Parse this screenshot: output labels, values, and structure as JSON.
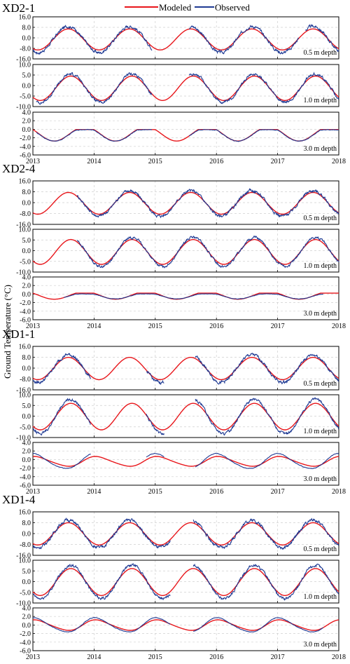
{
  "legend": {
    "modeled": "Modeled",
    "observed": "Observed",
    "modeled_color": "#e8161b",
    "observed_color": "#1f3a93"
  },
  "ylabel": "Ground Temperature (°C)",
  "x_tick_labels": [
    "2013",
    "2014",
    "2015",
    "2016",
    "2017",
    "2018"
  ],
  "chart_data": [
    {
      "station": "XD2-1",
      "panels": [
        {
          "type": "line",
          "depth": "0.5 m depth",
          "ylim": [
            -16,
            16
          ],
          "yticks": [
            "16.0",
            "8.0",
            "0.0",
            "-8.0",
            "-16.0"
          ],
          "xlim": [
            2013,
            2018
          ],
          "grid": true,
          "model": {
            "mean": -1.2,
            "amp": 8.0,
            "phase": 0.58,
            "shape": 1
          },
          "observed_gaps": [
            [
              2014.95,
              2015.55
            ],
            [
              2017.35,
              2017.45
            ]
          ],
          "obs_bias": 0.8,
          "obs_amp_scale": 1.15,
          "obs_noise": 1.6
        },
        {
          "type": "line",
          "depth": "1.0 m depth",
          "ylim": [
            -10,
            10
          ],
          "yticks": [
            "10.0",
            "5.0",
            "0.0",
            "-5.0",
            "-10.0"
          ],
          "xlim": [
            2013,
            2018
          ],
          "grid": true,
          "model": {
            "mean": -1.3,
            "amp": 5.8,
            "phase": 0.62,
            "shape": 1
          },
          "observed_gaps": [
            [
              2013.0,
              2013.05
            ],
            [
              2014.95,
              2015.55
            ]
          ],
          "obs_bias": 0.3,
          "obs_amp_scale": 1.12,
          "obs_noise": 0.9
        },
        {
          "type": "line",
          "depth": "3.0 m depth",
          "ylim": [
            -6,
            4
          ],
          "yticks": [
            "4.0",
            "2.0",
            "0.0",
            "-2.0",
            "-4.0",
            "-6.0"
          ],
          "xlim": [
            2013,
            2018
          ],
          "grid": true,
          "model": {
            "mean": -1.6,
            "amp": 1.7,
            "phase": 0.85,
            "shape": 2
          },
          "observed_gaps": [
            [
              2013.0,
              2013.05
            ],
            [
              2014.95,
              2015.55
            ]
          ],
          "obs_bias": 0.2,
          "obs_amp_scale": 0.85,
          "obs_noise": 0.1
        }
      ]
    },
    {
      "station": "XD2-4",
      "panels": [
        {
          "type": "line",
          "depth": "0.5 m depth",
          "ylim": [
            -16,
            16
          ],
          "yticks": [
            "16.0",
            "8.0",
            "0.0",
            "-8.0",
            "-16.0"
          ],
          "xlim": [
            2013,
            2018
          ],
          "grid": true,
          "model": {
            "mean": -0.5,
            "amp": 8.0,
            "phase": 0.58,
            "shape": 1
          },
          "observed_gaps": [
            [
              2013.0,
              2013.72
            ]
          ],
          "obs_bias": 0.5,
          "obs_amp_scale": 1.1,
          "obs_noise": 1.5
        },
        {
          "type": "line",
          "depth": "1.0 m depth",
          "ylim": [
            -10,
            10
          ],
          "yticks": [
            "10.0",
            "5.0",
            "0.0",
            "-5.0",
            "-10.0"
          ],
          "xlim": [
            2013,
            2018
          ],
          "grid": true,
          "model": {
            "mean": -0.6,
            "amp": 5.8,
            "phase": 0.62,
            "shape": 1
          },
          "observed_gaps": [
            [
              2013.0,
              2013.72
            ]
          ],
          "obs_bias": 0.4,
          "obs_amp_scale": 1.1,
          "obs_noise": 0.8
        },
        {
          "type": "line",
          "depth": "3.0 m depth",
          "ylim": [
            -6,
            4
          ],
          "yticks": [
            "4.0",
            "2.0",
            "0.0",
            "-2.0",
            "-4.0",
            "-6.0"
          ],
          "xlim": [
            2013,
            2018
          ],
          "grid": true,
          "model": {
            "mean": -0.6,
            "amp": 0.9,
            "phase": 0.85,
            "shape": 2
          },
          "observed_gaps": [
            [
              2013.0,
              2013.5
            ],
            [
              2017.75,
              2018.0
            ]
          ],
          "obs_bias": 0.15,
          "obs_amp_scale": 0.6,
          "obs_noise": 0.05
        }
      ]
    },
    {
      "station": "XD1-1",
      "panels": [
        {
          "type": "line",
          "depth": "0.5 m depth",
          "ylim": [
            -16,
            16
          ],
          "yticks": [
            "16.0",
            "8.0",
            "0.0",
            "-8.0",
            "-16.0"
          ],
          "xlim": [
            2013,
            2018
          ],
          "grid": true,
          "model": {
            "mean": -0.3,
            "amp": 8.2,
            "phase": 0.58,
            "shape": 1
          },
          "observed_gaps": [
            [
              2013.95,
              2014.85
            ],
            [
              2015.15,
              2015.65
            ]
          ],
          "obs_bias": 0.8,
          "obs_amp_scale": 1.15,
          "obs_noise": 1.6
        },
        {
          "type": "line",
          "depth": "1.0 m depth",
          "ylim": [
            -10,
            10
          ],
          "yticks": [
            "10.0",
            "5.0",
            "0.0",
            "-5.0",
            "-10.0"
          ],
          "xlim": [
            2013,
            2018
          ],
          "grid": true,
          "model": {
            "mean": -0.2,
            "amp": 6.2,
            "phase": 0.62,
            "shape": 1
          },
          "observed_gaps": [
            [
              2013.95,
              2014.85
            ],
            [
              2015.15,
              2015.65
            ]
          ],
          "obs_bias": 0.6,
          "obs_amp_scale": 1.2,
          "obs_noise": 0.9
        },
        {
          "type": "line",
          "depth": "3.0 m depth",
          "ylim": [
            -6,
            4
          ],
          "yticks": [
            "4.0",
            "2.0",
            "0.0",
            "-2.0",
            "-4.0",
            "-6.0"
          ],
          "xlim": [
            2013,
            2018
          ],
          "grid": true,
          "model": {
            "mean": -0.5,
            "amp": 1.4,
            "phase": 0.85,
            "shape": 3
          },
          "observed_gaps": [
            [
              2013.95,
              2014.85
            ],
            [
              2015.15,
              2015.65
            ]
          ],
          "obs_bias": 0.4,
          "obs_amp_scale": 1.4,
          "obs_noise": 0.08
        }
      ]
    },
    {
      "station": "XD1-4",
      "panels": [
        {
          "type": "line",
          "depth": "0.5 m depth",
          "ylim": [
            -16,
            16
          ],
          "yticks": [
            "16.0",
            "8.0",
            "0.0",
            "-8.0",
            "-16.0"
          ],
          "xlim": [
            2013,
            2018
          ],
          "grid": true,
          "model": {
            "mean": -0.2,
            "amp": 8.2,
            "phase": 0.58,
            "shape": 1
          },
          "observed_gaps": [
            [
              2015.25,
              2015.62
            ]
          ],
          "obs_bias": 0.8,
          "obs_amp_scale": 1.15,
          "obs_noise": 1.6
        },
        {
          "type": "line",
          "depth": "1.0 m depth",
          "ylim": [
            -10,
            10
          ],
          "yticks": [
            "10.0",
            "5.0",
            "0.0",
            "-5.0",
            "-10.0"
          ],
          "xlim": [
            2013,
            2018
          ],
          "grid": true,
          "model": {
            "mean": -0.2,
            "amp": 6.3,
            "phase": 0.62,
            "shape": 1
          },
          "observed_gaps": [
            [
              2015.25,
              2015.62
            ]
          ],
          "obs_bias": 0.6,
          "obs_amp_scale": 1.15,
          "obs_noise": 0.9
        },
        {
          "type": "line",
          "depth": "3.0 m depth",
          "ylim": [
            -6,
            4
          ],
          "yticks": [
            "4.0",
            "2.0",
            "0.0",
            "-2.0",
            "-4.0",
            "-6.0"
          ],
          "xlim": [
            2013,
            2018
          ],
          "grid": true,
          "model": {
            "mean": -0.1,
            "amp": 1.5,
            "phase": 0.85,
            "shape": 3
          },
          "observed_gaps": [
            [
              2015.25,
              2015.62
            ],
            [
              2017.75,
              2018.0
            ]
          ],
          "obs_bias": 0.2,
          "obs_amp_scale": 1.3,
          "obs_noise": 0.08
        }
      ]
    }
  ]
}
